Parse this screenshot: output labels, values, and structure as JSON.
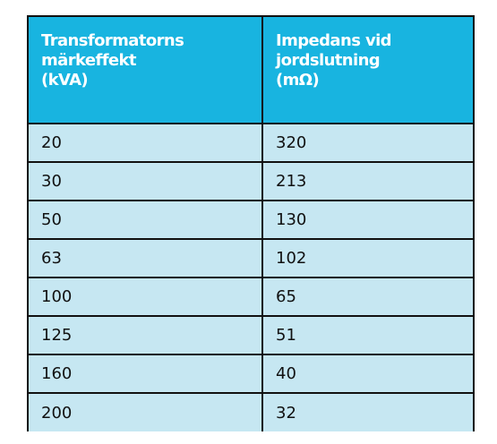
{
  "table": {
    "headers": [
      {
        "lines": [
          "Transformatorns",
          "märkeffekt",
          "(kVA)"
        ]
      },
      {
        "lines": [
          "Impedans vid",
          "jordslutning",
          "(mΩ)"
        ]
      }
    ],
    "rows": [
      [
        "20",
        "320"
      ],
      [
        "30",
        "213"
      ],
      [
        "50",
        "130"
      ],
      [
        "63",
        "102"
      ],
      [
        "100",
        "65"
      ],
      [
        "125",
        "51"
      ],
      [
        "160",
        "40"
      ],
      [
        "200",
        "32"
      ]
    ]
  },
  "colors": {
    "header_bg": "#18b4e0",
    "row_bg": "#c6e7f2",
    "border": "#111111"
  }
}
